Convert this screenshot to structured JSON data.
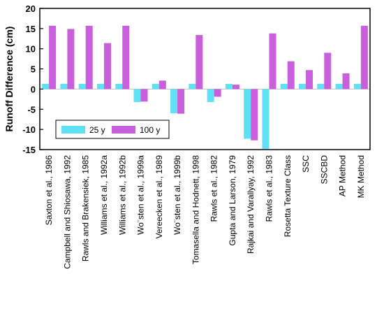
{
  "chart_data": {
    "type": "bar",
    "ylabel": "Runoff Difference (cm)",
    "xlabel": "",
    "title": "",
    "ylim": [
      -15,
      20
    ],
    "yticks": [
      -15,
      -10,
      -5,
      0,
      5,
      10,
      15,
      20
    ],
    "legend_position": "lower-left",
    "categories": [
      "Saxton et al., 1986",
      "Campbell and Shiosawa, 1992",
      "Rawls and Brakensiek, 1985",
      "Williams et al., 1992a",
      "Williams et al., 1992b",
      "Wo¨sten et al., 1999a",
      "Vereecken et al., 1989",
      "Wo¨sten et al., 1999b",
      "Tomasella and Hodnett, 1998",
      "Rawls et al., 1982",
      "Gupta and Larson, 1979",
      "Rajkai and Varallyay, 1992",
      "Rawls et al., 1983",
      "Rosetta Texture Class",
      "SSC",
      "SSCBD",
      "AP Method",
      "MK Method"
    ],
    "series": [
      {
        "name": "25 y",
        "color": "#5ee0f5",
        "values": [
          1.3,
          1.3,
          1.3,
          1.3,
          1.3,
          -3.2,
          1.3,
          -6.0,
          1.3,
          -3.2,
          1.3,
          -12.3,
          -14.8,
          1.3,
          1.3,
          1.3,
          1.3,
          1.3
        ]
      },
      {
        "name": "100 y",
        "color": "#c95fdc",
        "values": [
          15.7,
          14.9,
          15.7,
          11.4,
          15.7,
          -3.1,
          2.1,
          -6.1,
          13.4,
          -1.9,
          1.1,
          -12.7,
          13.8,
          6.9,
          4.7,
          9.0,
          3.9,
          15.7
        ]
      }
    ]
  }
}
